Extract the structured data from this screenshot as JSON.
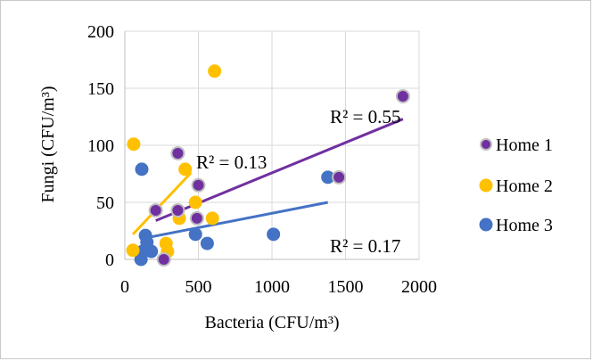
{
  "chart_data": {
    "type": "scatter",
    "xlabel": "Bacteria (CFU/m³)",
    "ylabel": "Fungi (CFU/m³)",
    "xlim": [
      0,
      2000
    ],
    "ylim": [
      0,
      200
    ],
    "x_ticks": [
      "0",
      "500",
      "1000",
      "1500",
      "2000"
    ],
    "y_ticks": [
      "0",
      "50",
      "100",
      "150",
      "200"
    ],
    "grid": true,
    "legend_position": "right",
    "series": [
      {
        "name": "Home 1",
        "color": "#7030A0",
        "marker_outline": "#BFBFBF",
        "points": [
          [
            210,
            43
          ],
          [
            265,
            0
          ],
          [
            360,
            43
          ],
          [
            360,
            93
          ],
          [
            490,
            36
          ],
          [
            500,
            65
          ],
          [
            1455,
            72
          ],
          [
            1890,
            143
          ]
        ],
        "trendline": {
          "x": [
            210,
            1890
          ],
          "y": [
            34,
            123
          ]
        },
        "r2_label": "R² = 0.55"
      },
      {
        "name": "Home 2",
        "color": "#FFC000",
        "marker_outline": "#FFC000",
        "points": [
          [
            55,
            8
          ],
          [
            60,
            101
          ],
          [
            280,
            14
          ],
          [
            290,
            7
          ],
          [
            370,
            36
          ],
          [
            410,
            79
          ],
          [
            480,
            50
          ],
          [
            595,
            36
          ],
          [
            610,
            165
          ]
        ],
        "trendline": {
          "x": [
            55,
            450
          ],
          "y": [
            22,
            76
          ]
        },
        "r2_label": "R² = 0.13"
      },
      {
        "name": "Home 3",
        "color": "#4472C4",
        "marker_outline": "#4472C4",
        "points": [
          [
            110,
            0
          ],
          [
            115,
            79
          ],
          [
            120,
            7
          ],
          [
            140,
            21
          ],
          [
            150,
            15
          ],
          [
            180,
            7
          ],
          [
            480,
            22
          ],
          [
            560,
            14
          ],
          [
            1010,
            22
          ],
          [
            1380,
            72
          ]
        ],
        "trendline": {
          "x": [
            110,
            1380
          ],
          "y": [
            18,
            50
          ]
        },
        "r2_label": "R² = 0.17"
      }
    ]
  }
}
